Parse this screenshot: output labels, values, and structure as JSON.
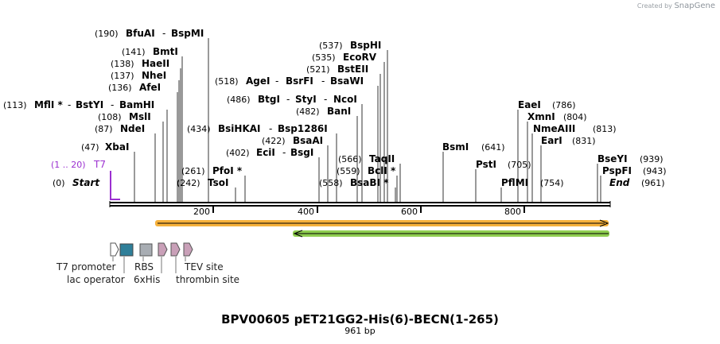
{
  "credit": {
    "prefix": "Created by",
    "brand": "SnapGene"
  },
  "title": "BPV00605 pET21GG2-His(6)-BECN(1-265)",
  "length_label": "961 bp",
  "sequence_length": 961,
  "ends": {
    "start": "Start",
    "end": "End",
    "start_pos": "(0)",
    "end_pos": "(961)"
  },
  "primer": {
    "range": "(1 .. 20)",
    "name": "T7",
    "color": "#9b30d0"
  },
  "ticks": [
    "200",
    "400",
    "600",
    "800"
  ],
  "sites_left": [
    {
      "pos": "(190)",
      "names": [
        "BfuAI",
        "BspMI"
      ],
      "bp": 190
    },
    {
      "pos": "(141)",
      "names": [
        "BmtI"
      ],
      "bp": 141
    },
    {
      "pos": "(138)",
      "names": [
        "HaeII"
      ],
      "bp": 138
    },
    {
      "pos": "(137)",
      "names": [
        "NheI"
      ],
      "bp": 137
    },
    {
      "pos": "(136)",
      "names": [
        "AfeI"
      ],
      "bp": 136
    },
    {
      "pos": "(113)",
      "names": [
        "MflI *",
        "BstYI",
        "BamHI"
      ],
      "bp": 113
    },
    {
      "pos": "(108)",
      "names": [
        "MslI"
      ],
      "bp": 108
    },
    {
      "pos": "(87)",
      "names": [
        "NdeI"
      ],
      "bp": 87
    },
    {
      "pos": "(47)",
      "names": [
        "XbaI"
      ],
      "bp": 47
    },
    {
      "pos": "(518)",
      "names": [
        "AgeI",
        "BsrFI",
        "BsaWI"
      ],
      "bp": 518
    },
    {
      "pos": "(486)",
      "names": [
        "BtgI",
        "StyI",
        "NcoI"
      ],
      "bp": 486
    },
    {
      "pos": "(482)",
      "names": [
        "BanI"
      ],
      "bp": 482
    },
    {
      "pos": "(434)",
      "names": [
        "BsiHKAI",
        "Bsp1286I"
      ],
      "bp": 434
    },
    {
      "pos": "(422)",
      "names": [
        "BsaAI"
      ],
      "bp": 422
    },
    {
      "pos": "(402)",
      "names": [
        "EciI",
        "BsgI"
      ],
      "bp": 402
    },
    {
      "pos": "(537)",
      "names": [
        "BspHI"
      ],
      "bp": 537
    },
    {
      "pos": "(535)",
      "names": [
        "EcoRV"
      ],
      "bp": 535
    },
    {
      "pos": "(521)",
      "names": [
        "BstEII"
      ],
      "bp": 521
    },
    {
      "pos": "(566)",
      "names": [
        "TaqII"
      ],
      "bp": 566
    },
    {
      "pos": "(559)",
      "names": [
        "BclI *"
      ],
      "bp": 559
    },
    {
      "pos": "(261)",
      "names": [
        "PfoI *"
      ],
      "bp": 261
    },
    {
      "pos": "(242)",
      "names": [
        "TsoI"
      ],
      "bp": 242
    }
  ],
  "sites_right": [
    {
      "pos": "(558)",
      "names": [
        "BsaBI *"
      ],
      "bp": 558
    },
    {
      "pos": "(641)",
      "names": [
        "BsmI"
      ],
      "bp": 641
    },
    {
      "pos": "(705)",
      "names": [
        "PstI"
      ],
      "bp": 705
    },
    {
      "pos": "(754)",
      "names": [
        "PflMI"
      ],
      "bp": 754
    },
    {
      "pos": "(786)",
      "names": [
        "EaeI"
      ],
      "bp": 786
    },
    {
      "pos": "(804)",
      "names": [
        "XmnI"
      ],
      "bp": 804
    },
    {
      "pos": "(813)",
      "names": [
        "NmeAIII"
      ],
      "bp": 813
    },
    {
      "pos": "(831)",
      "names": [
        "EarI"
      ],
      "bp": 831
    },
    {
      "pos": "(939)",
      "names": [
        "BseYI"
      ],
      "bp": 939
    },
    {
      "pos": "(943)",
      "names": [
        "PspFI"
      ],
      "bp": 943
    }
  ],
  "features": [
    {
      "name": "T7 promoter",
      "color": "#ffffff"
    },
    {
      "name": "lac operator",
      "color": "#2f7f99"
    },
    {
      "name": "RBS",
      "color": "#a8adb3"
    },
    {
      "name": "6xHis",
      "color": "#c9a0b8"
    },
    {
      "name": "TEV site",
      "color": "#c9a0b8"
    },
    {
      "name": "thrombin site",
      "color": "#c9a0b8"
    }
  ],
  "orf_colors": {
    "orange": "#f6b13b",
    "green": "#8fce50"
  }
}
